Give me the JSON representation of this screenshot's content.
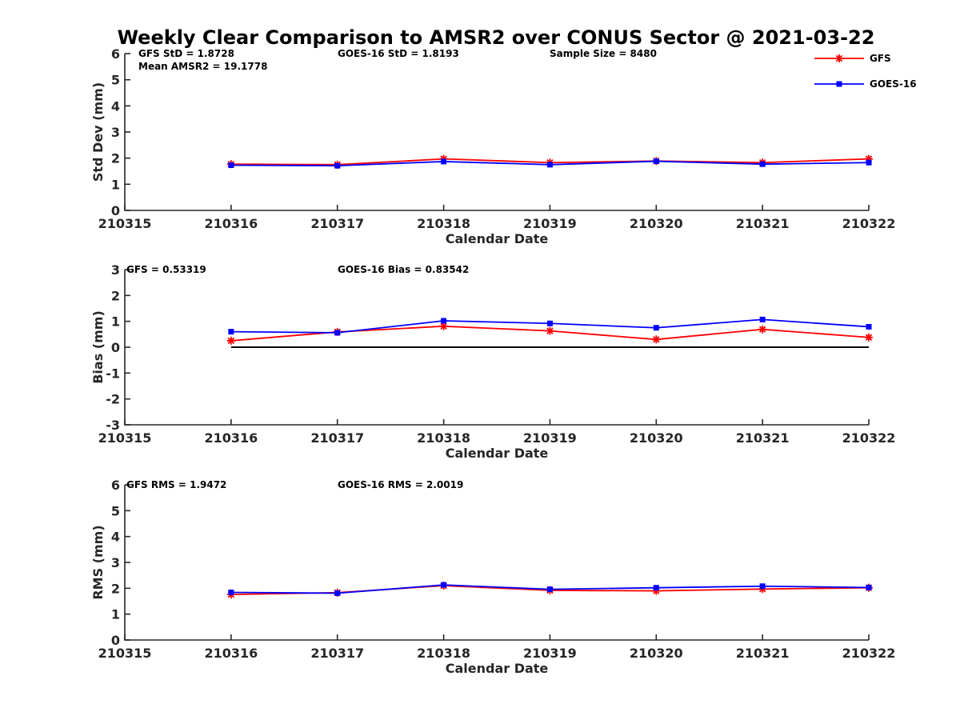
{
  "title": "Weekly Clear Comparison to AMSR2 over CONUS Sector @ 2021-03-22",
  "legend": {
    "placement": "top-right",
    "entries": [
      {
        "name": "GFS",
        "color": "#ff0000",
        "marker": "asterisk"
      },
      {
        "name": "GOES-16",
        "color": "#0000ff",
        "marker": "square"
      }
    ]
  },
  "chart_data": [
    {
      "type": "line",
      "xlabel": "Calendar Date",
      "ylabel": "Std Dev (mm)",
      "x": [
        "210315",
        "210316",
        "210317",
        "210318",
        "210319",
        "210320",
        "210321",
        "210322"
      ],
      "ylim": [
        0,
        6
      ],
      "yticks": [
        "0",
        "1",
        "2",
        "3",
        "4",
        "5",
        "6"
      ],
      "grid": false,
      "annotations": [
        "GFS StD = 1.8728",
        "GOES-16 StD = 1.8193",
        "Sample Size = 8480",
        "Mean AMSR2 = 19.1778"
      ],
      "series": [
        {
          "name": "GFS",
          "color": "#ff0000",
          "x": [
            "210316",
            "210317",
            "210318",
            "210319",
            "210320",
            "210321",
            "210322"
          ],
          "values": [
            1.77,
            1.75,
            1.97,
            1.83,
            1.89,
            1.83,
            1.97
          ]
        },
        {
          "name": "GOES-16",
          "color": "#0000ff",
          "x": [
            "210316",
            "210317",
            "210318",
            "210319",
            "210320",
            "210321",
            "210322"
          ],
          "values": [
            1.73,
            1.71,
            1.87,
            1.75,
            1.88,
            1.77,
            1.83
          ]
        }
      ]
    },
    {
      "type": "line",
      "xlabel": "Calendar Date",
      "ylabel": "Bias (mm)",
      "x": [
        "210315",
        "210316",
        "210317",
        "210318",
        "210319",
        "210320",
        "210321",
        "210322"
      ],
      "ylim": [
        -3,
        3
      ],
      "yticks": [
        "-3",
        "-2",
        "-1",
        "0",
        "1",
        "2",
        "3"
      ],
      "grid": false,
      "zero_line": true,
      "annotations": [
        "GFS = 0.53319",
        "GOES-16 Bias  = 0.83542"
      ],
      "series": [
        {
          "name": "GFS",
          "color": "#ff0000",
          "x": [
            "210316",
            "210317",
            "210318",
            "210319",
            "210320",
            "210321",
            "210322"
          ],
          "values": [
            0.25,
            0.59,
            0.81,
            0.63,
            0.3,
            0.69,
            0.38
          ]
        },
        {
          "name": "GOES-16",
          "color": "#0000ff",
          "x": [
            "210316",
            "210317",
            "210318",
            "210319",
            "210320",
            "210321",
            "210322"
          ],
          "values": [
            0.6,
            0.56,
            1.02,
            0.92,
            0.75,
            1.07,
            0.79
          ]
        }
      ]
    },
    {
      "type": "line",
      "xlabel": "Calendar Date",
      "ylabel": "RMS (mm)",
      "x": [
        "210315",
        "210316",
        "210317",
        "210318",
        "210319",
        "210320",
        "210321",
        "210322"
      ],
      "ylim": [
        0,
        6
      ],
      "yticks": [
        "0",
        "1",
        "2",
        "3",
        "4",
        "5",
        "6"
      ],
      "grid": false,
      "annotations": [
        "GFS RMS = 1.9472",
        "GOES-16 RMS = 2.0019"
      ],
      "series": [
        {
          "name": "GFS",
          "color": "#ff0000",
          "x": [
            "210316",
            "210317",
            "210318",
            "210319",
            "210320",
            "210321",
            "210322"
          ],
          "values": [
            1.76,
            1.83,
            2.1,
            1.92,
            1.9,
            1.97,
            2.02
          ]
        },
        {
          "name": "GOES-16",
          "color": "#0000ff",
          "x": [
            "210316",
            "210317",
            "210318",
            "210319",
            "210320",
            "210321",
            "210322"
          ],
          "values": [
            1.84,
            1.81,
            2.13,
            1.96,
            2.02,
            2.08,
            2.03
          ]
        }
      ]
    }
  ]
}
